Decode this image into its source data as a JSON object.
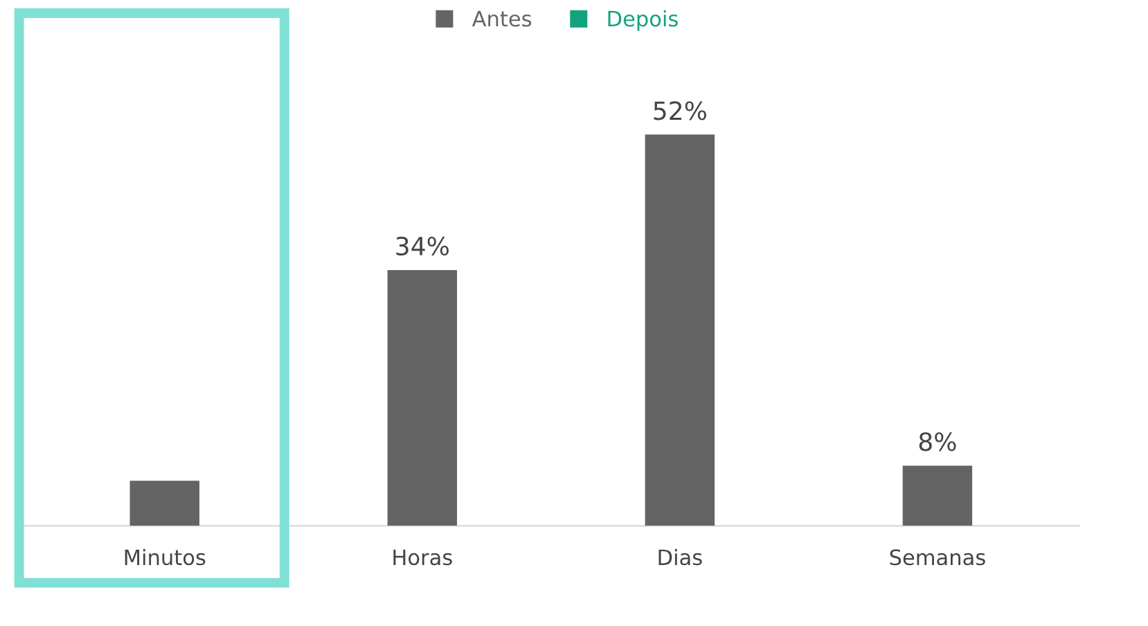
{
  "chart_data": {
    "type": "bar",
    "categories": [
      "Minutos",
      "Horas",
      "Dias",
      "Semanas"
    ],
    "series": [
      {
        "name": "Antes",
        "color": "#646464",
        "values": [
          6,
          34,
          52,
          8
        ],
        "value_labels": [
          null,
          "34%",
          "52%",
          "8%"
        ]
      },
      {
        "name": "Depois",
        "color": "#13a37c",
        "values": [
          null,
          null,
          null,
          null
        ]
      }
    ],
    "legend": "top",
    "grid": false
  }
}
